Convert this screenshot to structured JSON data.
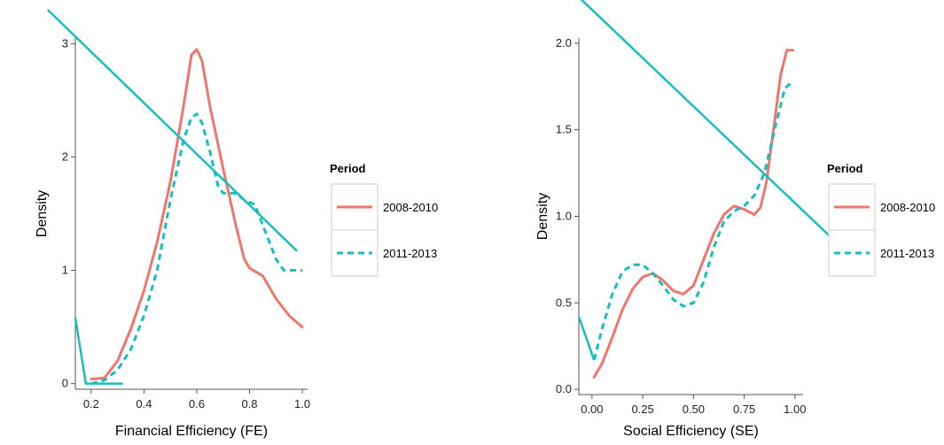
{
  "colors": {
    "red": "#F0766D",
    "cyan": "#17BEBF",
    "axis": "#555555",
    "legend_border": "#cccccc"
  },
  "chart_data": [
    {
      "type": "line",
      "xlabel": "Financial Efficiency (FE)",
      "ylabel": "Density",
      "xlim": [
        0.14,
        1.02
      ],
      "ylim": [
        -0.05,
        3.05
      ],
      "x_ticks": [
        0.2,
        0.4,
        0.6,
        0.8,
        1.0
      ],
      "x_tick_labels": [
        "0.2",
        "0.4",
        "0.6",
        "0.8",
        "1.0"
      ],
      "y_ticks": [
        0,
        1,
        2,
        3
      ],
      "y_tick_labels": [
        "0",
        "1",
        "2",
        "3"
      ],
      "legend": {
        "title": "Period",
        "position": "right",
        "entries": [
          "2008-2010",
          "2011-2013"
        ]
      },
      "series": [
        {
          "name": "2008-2010",
          "style": "solid",
          "color": "#F0766D",
          "points": [
            [
              0.2,
              0.04
            ],
            [
              0.25,
              0.05
            ],
            [
              0.3,
              0.2
            ],
            [
              0.35,
              0.48
            ],
            [
              0.4,
              0.82
            ],
            [
              0.45,
              1.25
            ],
            [
              0.5,
              1.78
            ],
            [
              0.55,
              2.45
            ],
            [
              0.58,
              2.9
            ],
            [
              0.6,
              2.95
            ],
            [
              0.62,
              2.85
            ],
            [
              0.65,
              2.45
            ],
            [
              0.7,
              1.9
            ],
            [
              0.75,
              1.38
            ],
            [
              0.78,
              1.1
            ],
            [
              0.8,
              1.02
            ],
            [
              0.85,
              0.95
            ],
            [
              0.9,
              0.75
            ],
            [
              0.95,
              0.6
            ],
            [
              1.0,
              0.5
            ]
          ]
        },
        {
          "name": "2011-2013",
          "style": "dashed",
          "color": "#17BEBF",
          "points": [
            [
              0.2,
              0.0
            ],
            [
              0.25,
              0.03
            ],
            [
              0.3,
              0.12
            ],
            [
              0.35,
              0.3
            ],
            [
              0.4,
              0.6
            ],
            [
              0.45,
              1.0
            ],
            [
              0.5,
              1.62
            ],
            [
              0.55,
              2.15
            ],
            [
              0.58,
              2.35
            ],
            [
              0.6,
              2.38
            ],
            [
              0.62,
              2.3
            ],
            [
              0.65,
              2.05
            ],
            [
              0.68,
              1.75
            ],
            [
              0.7,
              1.68
            ],
            [
              0.75,
              1.68
            ],
            [
              0.78,
              1.62
            ],
            [
              0.82,
              1.58
            ],
            [
              0.85,
              1.4
            ],
            [
              0.9,
              1.1
            ],
            [
              0.93,
              1.0
            ],
            [
              0.97,
              1.0
            ],
            [
              1.0,
              1.0
            ]
          ]
        }
      ],
      "overlay": {
        "color": "#17BEBF",
        "points": [
          [
            0.14,
            0.58
          ],
          [
            0.18,
            0.0
          ],
          [
            0.32,
            0.0
          ]
        ],
        "diagonal": [
          [
            0.035,
            3.3
          ],
          [
            0.98,
            1.17
          ]
        ]
      }
    },
    {
      "type": "line",
      "xlabel": "Social Efficiency (SE)",
      "ylabel": "Density",
      "xlim": [
        -0.065,
        1.04
      ],
      "ylim": [
        -0.03,
        2.03
      ],
      "x_ticks": [
        0.0,
        0.25,
        0.5,
        0.75,
        1.0
      ],
      "x_tick_labels": [
        "0.00",
        "0.25",
        "0.50",
        "0.75",
        "1.00"
      ],
      "y_ticks": [
        0.0,
        0.5,
        1.0,
        1.5,
        2.0
      ],
      "y_tick_labels": [
        "0.0",
        "0.5",
        "1.0",
        "1.5",
        "2.0"
      ],
      "legend": {
        "title": "Period",
        "position": "right",
        "entries": [
          "2008-2010",
          "2011-2013"
        ]
      },
      "series": [
        {
          "name": "2008-2010",
          "style": "solid",
          "color": "#F0766D",
          "points": [
            [
              0.01,
              0.07
            ],
            [
              0.05,
              0.15
            ],
            [
              0.1,
              0.3
            ],
            [
              0.15,
              0.46
            ],
            [
              0.2,
              0.58
            ],
            [
              0.25,
              0.65
            ],
            [
              0.3,
              0.67
            ],
            [
              0.35,
              0.63
            ],
            [
              0.4,
              0.57
            ],
            [
              0.45,
              0.55
            ],
            [
              0.5,
              0.6
            ],
            [
              0.55,
              0.75
            ],
            [
              0.6,
              0.9
            ],
            [
              0.65,
              1.01
            ],
            [
              0.7,
              1.06
            ],
            [
              0.75,
              1.04
            ],
            [
              0.8,
              1.01
            ],
            [
              0.83,
              1.05
            ],
            [
              0.86,
              1.2
            ],
            [
              0.9,
              1.55
            ],
            [
              0.93,
              1.82
            ],
            [
              0.96,
              1.96
            ],
            [
              0.99,
              1.96
            ]
          ]
        },
        {
          "name": "2011-2013",
          "style": "dashed",
          "color": "#17BEBF",
          "points": [
            [
              0.01,
              0.17
            ],
            [
              0.05,
              0.35
            ],
            [
              0.1,
              0.55
            ],
            [
              0.15,
              0.68
            ],
            [
              0.2,
              0.72
            ],
            [
              0.25,
              0.72
            ],
            [
              0.3,
              0.67
            ],
            [
              0.35,
              0.6
            ],
            [
              0.4,
              0.52
            ],
            [
              0.45,
              0.48
            ],
            [
              0.5,
              0.5
            ],
            [
              0.55,
              0.62
            ],
            [
              0.6,
              0.82
            ],
            [
              0.65,
              0.97
            ],
            [
              0.7,
              1.03
            ],
            [
              0.75,
              1.06
            ],
            [
              0.8,
              1.12
            ],
            [
              0.85,
              1.25
            ],
            [
              0.9,
              1.5
            ],
            [
              0.95,
              1.74
            ],
            [
              0.99,
              1.78
            ]
          ]
        }
      ],
      "overlay": {
        "color": "#17BEBF",
        "points": [
          [
            -0.065,
            0.42
          ],
          [
            0.01,
            0.17
          ]
        ],
        "diagonal": [
          [
            -0.14,
            2.35
          ],
          [
            1.23,
            0.82
          ]
        ]
      }
    }
  ]
}
